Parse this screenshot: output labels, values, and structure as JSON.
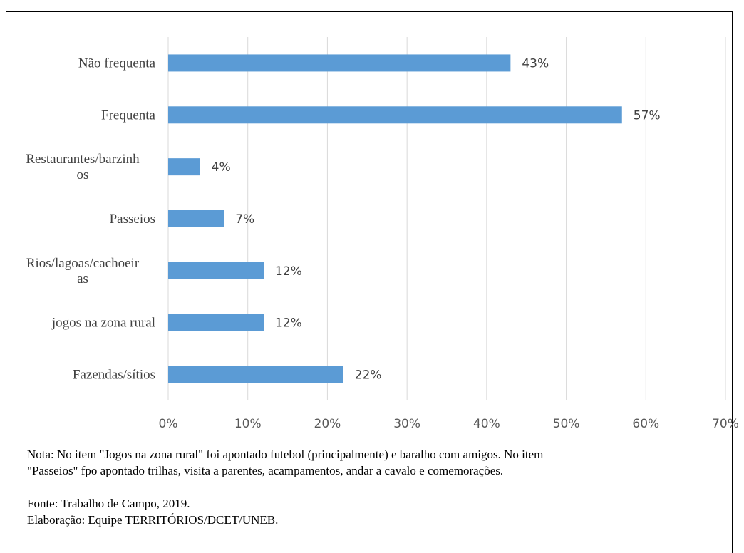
{
  "chart_data": {
    "type": "bar",
    "orientation": "horizontal",
    "categories": [
      "Não frequenta",
      "Frequenta",
      "Restaurantes/barzinhos",
      "Passeios",
      "Rios/lagoas/cachoeiras",
      "jogos na zona rural",
      "Fazendas/sítios"
    ],
    "category_lines": [
      [
        "Não frequenta"
      ],
      [
        "Frequenta"
      ],
      [
        "Restaurantes/barzinh",
        "os"
      ],
      [
        "Passeios"
      ],
      [
        "Rios/lagoas/cachoeir",
        "as"
      ],
      [
        "jogos na zona rural"
      ],
      [
        "Fazendas/sítios"
      ]
    ],
    "values": [
      43,
      57,
      4,
      7,
      12,
      12,
      22
    ],
    "data_labels": [
      "43%",
      "57%",
      "4%",
      "7%",
      "12%",
      "12%",
      "22%"
    ],
    "xlim": [
      0,
      70
    ],
    "ticks": [
      0,
      10,
      20,
      30,
      40,
      50,
      60,
      70
    ],
    "tick_labels": [
      "0%",
      "10%",
      "20%",
      "30%",
      "40%",
      "50%",
      "60%",
      "70%"
    ],
    "grid": true,
    "bar_color": "#5b9bd5"
  },
  "notes": {
    "nota_line1": "Nota: No item \"Jogos na zona rural\" foi apontado futebol (principalmente) e baralho com amigos. No item",
    "nota_line2": "\"Passeios\" fpo apontado trilhas, visita a parentes, acampamentos, andar a cavalo e comemorações.",
    "fonte": "Fonte: Trabalho de  Campo, 2019.",
    "elaboracao": "Elaboração: Equipe  TERRITÓRIOS/DCET/UNEB."
  }
}
